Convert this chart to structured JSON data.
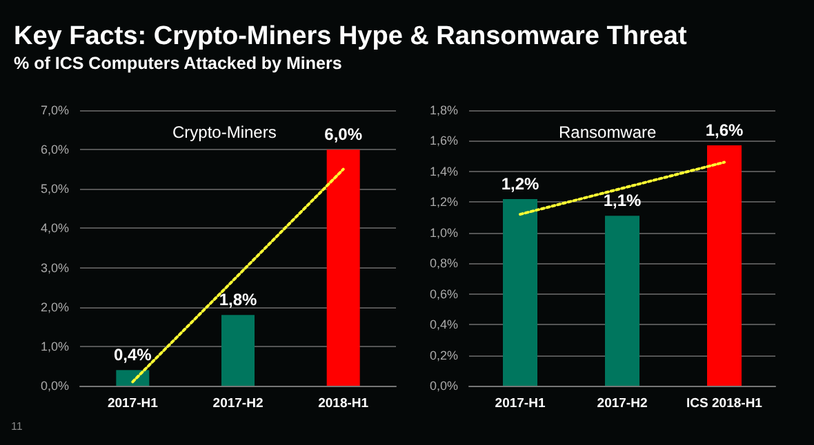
{
  "chart_data": [
    {
      "type": "bar",
      "title": "Crypto-Miners",
      "annotations": [
        "Key Facts: Crypto-Miners Hype & Ransomware Threat",
        "% of ICS Computers Attacked by Miners",
        "11"
      ],
      "categories": [
        "2017-H1",
        "2017-H2",
        "2018-H1"
      ],
      "series": [
        {
          "values": [
            0.4,
            1.8,
            6.0
          ],
          "colors": [
            "#00765e",
            "#00765e",
            "#ff0000"
          ],
          "value_labels": [
            "0,4%",
            "1,8%",
            "6,0%"
          ]
        },
        {
          "type": "line",
          "x": [
            "2017-H1",
            "2018-H1"
          ],
          "values": [
            0.1,
            5.5
          ],
          "color": "#ffff33",
          "line_style": "dotted",
          "marker": "none"
        }
      ],
      "ylim": [
        0,
        7
      ],
      "yticks": [
        {
          "value": 0,
          "label": "0,0%"
        },
        {
          "value": 1,
          "label": "1,0%"
        },
        {
          "value": 2,
          "label": "2,0%"
        },
        {
          "value": 3,
          "label": "3,0%"
        },
        {
          "value": 4,
          "label": "4,0%"
        },
        {
          "value": 5,
          "label": "5,0%"
        },
        {
          "value": 6,
          "label": "6,0%"
        },
        {
          "value": 7,
          "label": "7,0%"
        }
      ],
      "grid": "y"
    },
    {
      "type": "bar",
      "title": "Ransomware",
      "categories": [
        "2017-H1",
        "2017-H2",
        "ICS 2018-H1"
      ],
      "series": [
        {
          "values": [
            1.22,
            1.11,
            1.57
          ],
          "colors": [
            "#00765e",
            "#00765e",
            "#ff0000"
          ],
          "value_labels": [
            "1,2%",
            "1,1%",
            "1,6%"
          ]
        },
        {
          "type": "line",
          "x": [
            "2017-H1",
            "ICS 2018-H1"
          ],
          "values": [
            1.12,
            1.46
          ],
          "color": "#ffff33",
          "line_style": "dotted",
          "marker": "none"
        }
      ],
      "ylim": [
        0,
        1.8
      ],
      "yticks": [
        {
          "value": 0,
          "label": "0,0%"
        },
        {
          "value": 0.2,
          "label": "0,2%"
        },
        {
          "value": 0.4,
          "label": "0,4%"
        },
        {
          "value": 0.6,
          "label": "0,6%"
        },
        {
          "value": 0.8,
          "label": "0,8%"
        },
        {
          "value": 1.0,
          "label": "1,0%"
        },
        {
          "value": 1.2,
          "label": "1,2%"
        },
        {
          "value": 1.4,
          "label": "1,4%"
        },
        {
          "value": 1.6,
          "label": "1,6%"
        },
        {
          "value": 1.8,
          "label": "1,8%"
        }
      ],
      "grid": "y"
    }
  ]
}
